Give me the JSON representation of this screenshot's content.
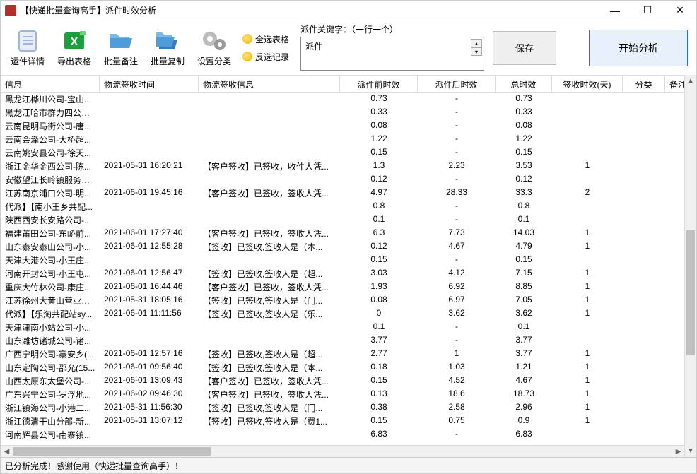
{
  "window": {
    "title": "【快递批量查询高手】派件时效分析"
  },
  "toolbar": {
    "waybill_detail": "运件详情",
    "export_table": "导出表格",
    "batch_note": "批量备注",
    "batch_copy": "批量复制",
    "set_category": "设置分类",
    "select_all_tables": "全选表格",
    "invert_records": "反选记录"
  },
  "keyword": {
    "label": "派件关键字：（一行一个）",
    "value": "派件"
  },
  "buttons": {
    "save": "保存",
    "analyze": "开始分析"
  },
  "columns": [
    "信息",
    "物流签收时间",
    "物流签收信息",
    "派件前时效",
    "派件后时效",
    "总时效",
    "签收时效(天)",
    "分类",
    "备注"
  ],
  "rows": [
    {
      "info": "黑龙江桦川公司-宝山...",
      "time": "",
      "sign": "",
      "pre": "0.73",
      "post": "-",
      "total": "0.73",
      "days": "",
      "cat": ""
    },
    {
      "info": "黑龙江哈市群力四公司...",
      "time": "",
      "sign": "",
      "pre": "0.33",
      "post": "-",
      "total": "0.33",
      "days": "",
      "cat": ""
    },
    {
      "info": "云南昆明马街公司-唐...",
      "time": "",
      "sign": "",
      "pre": "0.08",
      "post": "-",
      "total": "0.08",
      "days": "",
      "cat": ""
    },
    {
      "info": "云南会泽公司-大桥超...",
      "time": "",
      "sign": "",
      "pre": "1.22",
      "post": "-",
      "total": "1.22",
      "days": "",
      "cat": ""
    },
    {
      "info": "云南姚安县公司-徐天...",
      "time": "",
      "sign": "",
      "pre": "0.15",
      "post": "-",
      "total": "0.15",
      "days": "",
      "cat": ""
    },
    {
      "info": "浙江金华金西公司-陈...",
      "time": "2021-05-31 16:20:21",
      "sign": "【客户签收】已签收，收件人凭...",
      "pre": "1.3",
      "post": "2.23",
      "total": "3.53",
      "days": "1",
      "cat": ""
    },
    {
      "info": "安徽望江长岭镇服务点...",
      "time": "",
      "sign": "",
      "pre": "0.12",
      "post": "-",
      "total": "0.12",
      "days": "",
      "cat": ""
    },
    {
      "info": "江苏南京浦口公司-明...",
      "time": "2021-06-01 19:45:16",
      "sign": "【客户签收】已签收，签收人凭...",
      "pre": "4.97",
      "post": "28.33",
      "total": "33.3",
      "days": "2",
      "cat": ""
    },
    {
      "info": "代派】【南小王乡共配...",
      "time": "",
      "sign": "",
      "pre": "0.8",
      "post": "-",
      "total": "0.8",
      "days": "",
      "cat": ""
    },
    {
      "info": "陕西西安长安路公司-...",
      "time": "",
      "sign": "",
      "pre": "0.1",
      "post": "-",
      "total": "0.1",
      "days": "",
      "cat": ""
    },
    {
      "info": "福建莆田公司-东峤前...",
      "time": "2021-06-01 17:27:40",
      "sign": "【客户签收】已签收，签收人凭...",
      "pre": "6.3",
      "post": "7.73",
      "total": "14.03",
      "days": "1",
      "cat": ""
    },
    {
      "info": "山东泰安泰山公司-小...",
      "time": "2021-06-01 12:55:28",
      "sign": "【签收】已签收,签收人是（本...",
      "pre": "0.12",
      "post": "4.67",
      "total": "4.79",
      "days": "1",
      "cat": ""
    },
    {
      "info": "天津大港公司-小王庄...",
      "time": "",
      "sign": "",
      "pre": "0.15",
      "post": "-",
      "total": "0.15",
      "days": "",
      "cat": ""
    },
    {
      "info": "河南开封公司-小王屯...",
      "time": "2021-06-01 12:56:47",
      "sign": "【签收】已签收,签收人是（超...",
      "pre": "3.03",
      "post": "4.12",
      "total": "7.15",
      "days": "1",
      "cat": ""
    },
    {
      "info": "重庆大竹林公司-康庄...",
      "time": "2021-06-01 16:44:46",
      "sign": "【客户签收】已签收，签收人凭...",
      "pre": "1.93",
      "post": "6.92",
      "total": "8.85",
      "days": "1",
      "cat": ""
    },
    {
      "info": "江苏徐州大黄山营业部...",
      "time": "2021-05-31 18:05:16",
      "sign": "【签收】已签收,签收人是（门...",
      "pre": "0.08",
      "post": "6.97",
      "total": "7.05",
      "days": "1",
      "cat": ""
    },
    {
      "info": "代派】【乐淘共配站sy...",
      "time": "2021-06-01 11:11:56",
      "sign": "【签收】已签收,签收人是（乐...",
      "pre": "0",
      "post": "3.62",
      "total": "3.62",
      "days": "1",
      "cat": ""
    },
    {
      "info": "天津津南小站公司-小...",
      "time": "",
      "sign": "",
      "pre": "0.1",
      "post": "-",
      "total": "0.1",
      "days": "",
      "cat": ""
    },
    {
      "info": "山东潍坊诸城公司-诸...",
      "time": "",
      "sign": "",
      "pre": "3.77",
      "post": "-",
      "total": "3.77",
      "days": "",
      "cat": ""
    },
    {
      "info": "广西宁明公司-寨安乡(...",
      "time": "2021-06-01 12:57:16",
      "sign": "【签收】已签收,签收人是（超...",
      "pre": "2.77",
      "post": "1",
      "total": "3.77",
      "days": "1",
      "cat": ""
    },
    {
      "info": "山东定陶公司-邵允(15...",
      "time": "2021-06-01 09:56:40",
      "sign": "【签收】已签收,签收人是（本...",
      "pre": "0.18",
      "post": "1.03",
      "total": "1.21",
      "days": "1",
      "cat": ""
    },
    {
      "info": "山西太原东太堡公司-...",
      "time": "2021-06-01 13:09:43",
      "sign": "【客户签收】已签收，签收人凭...",
      "pre": "0.15",
      "post": "4.52",
      "total": "4.67",
      "days": "1",
      "cat": ""
    },
    {
      "info": "广东兴宁公司-罗浮地...",
      "time": "2021-06-02 09:46:30",
      "sign": "【客户签收】已签收，签收人凭...",
      "pre": "0.13",
      "post": "18.6",
      "total": "18.73",
      "days": "1",
      "cat": ""
    },
    {
      "info": "浙江镇海公司-小港二...",
      "time": "2021-05-31 11:56:30",
      "sign": "【签收】已签收,签收人是（门...",
      "pre": "0.38",
      "post": "2.58",
      "total": "2.96",
      "days": "1",
      "cat": ""
    },
    {
      "info": "浙江德清干山分部-新...",
      "time": "2021-05-31 13:07:12",
      "sign": "【签收】已签收,签收人是（费1...",
      "pre": "0.15",
      "post": "0.75",
      "total": "0.9",
      "days": "1",
      "cat": ""
    },
    {
      "info": "河南辉县公司-南寨镇...",
      "time": "",
      "sign": "",
      "pre": "6.83",
      "post": "-",
      "total": "6.83",
      "days": "",
      "cat": ""
    }
  ],
  "status": "已分析完成！感谢使用（快递批量查询高手）！",
  "colors": {
    "accent": "#2a6fd6",
    "toolbar_excel": "#1e9e3e",
    "toolbar_folder": "#4e9dd8",
    "toolbar_gear": "#999999"
  }
}
